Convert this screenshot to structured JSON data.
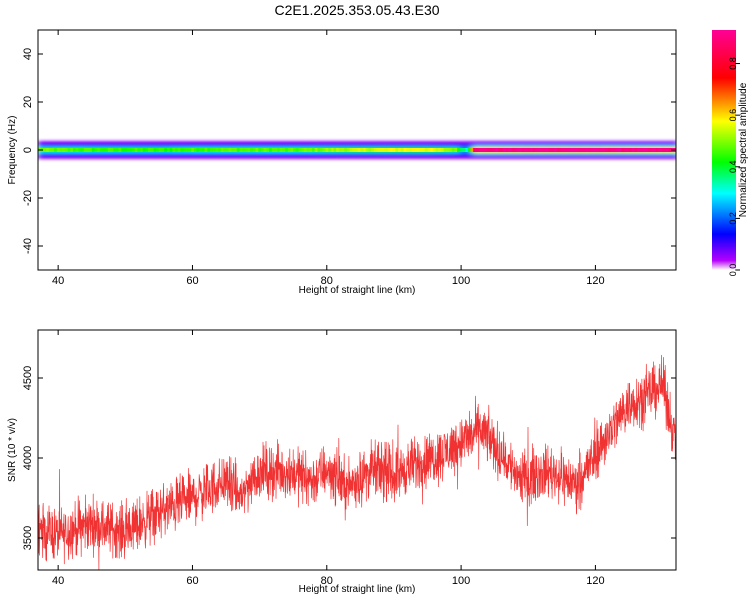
{
  "title": "C2E1.2025.353.05.43.E30",
  "chart_data": [
    {
      "type": "heatmap",
      "xlabel": "Height of straight line (km)",
      "ylabel": "Frequency (Hz)",
      "xlim": [
        37,
        132
      ],
      "ylim": [
        -50,
        50
      ],
      "xticks": [
        40,
        60,
        80,
        100,
        120
      ],
      "yticks": [
        -40,
        -20,
        0,
        20,
        40
      ],
      "grid": false,
      "colorbar": {
        "label": "Normalized spectral amplitude",
        "range": [
          0,
          0.93
        ],
        "ticks": [
          0.0,
          0.2,
          0.4,
          0.6,
          0.8
        ],
        "colormap": "hsv-rainbow (magenta-blue-cyan-green-yellow-red)"
      },
      "band_center_hz": 0,
      "band_peak_amplitude": [
        {
          "x": 38,
          "a": 0.48
        },
        {
          "x": 45,
          "a": 0.45
        },
        {
          "x": 55,
          "a": 0.44
        },
        {
          "x": 65,
          "a": 0.47
        },
        {
          "x": 75,
          "a": 0.46
        },
        {
          "x": 82,
          "a": 0.52
        },
        {
          "x": 88,
          "a": 0.55
        },
        {
          "x": 94,
          "a": 0.58
        },
        {
          "x": 99,
          "a": 0.5
        },
        {
          "x": 101,
          "a": 0.3
        },
        {
          "x": 102,
          "a": 0.9
        },
        {
          "x": 110,
          "a": 0.92
        },
        {
          "x": 120,
          "a": 0.92
        },
        {
          "x": 132,
          "a": 0.9
        }
      ]
    },
    {
      "type": "line",
      "xlabel": "Height of straight line (km)",
      "ylabel": "SNR (10 * v/v)",
      "xlim": [
        37,
        132
      ],
      "ylim": [
        3300,
        4800
      ],
      "xticks": [
        40,
        60,
        80,
        100,
        120
      ],
      "yticks": [
        3500,
        4000,
        4500
      ],
      "grid": false,
      "series": [
        {
          "color": "#f03232",
          "trend": [
            {
              "x": 37,
              "y": 3560
            },
            {
              "x": 40,
              "y": 3520
            },
            {
              "x": 45,
              "y": 3590
            },
            {
              "x": 50,
              "y": 3540
            },
            {
              "x": 55,
              "y": 3660
            },
            {
              "x": 60,
              "y": 3750
            },
            {
              "x": 65,
              "y": 3860
            },
            {
              "x": 67,
              "y": 3760
            },
            {
              "x": 70,
              "y": 3920
            },
            {
              "x": 75,
              "y": 3910
            },
            {
              "x": 78,
              "y": 3860
            },
            {
              "x": 80,
              "y": 3930
            },
            {
              "x": 83,
              "y": 3820
            },
            {
              "x": 87,
              "y": 3930
            },
            {
              "x": 90,
              "y": 3890
            },
            {
              "x": 93,
              "y": 3960
            },
            {
              "x": 97,
              "y": 4020
            },
            {
              "x": 100,
              "y": 4100
            },
            {
              "x": 103,
              "y": 4180
            },
            {
              "x": 106,
              "y": 4020
            },
            {
              "x": 109,
              "y": 3870
            },
            {
              "x": 113,
              "y": 3920
            },
            {
              "x": 117,
              "y": 3840
            },
            {
              "x": 119,
              "y": 3950
            },
            {
              "x": 122,
              "y": 4160
            },
            {
              "x": 125,
              "y": 4340
            },
            {
              "x": 128,
              "y": 4400
            },
            {
              "x": 130,
              "y": 4460
            },
            {
              "x": 132,
              "y": 4100
            }
          ],
          "noise_amplitude": 180
        }
      ]
    }
  ]
}
